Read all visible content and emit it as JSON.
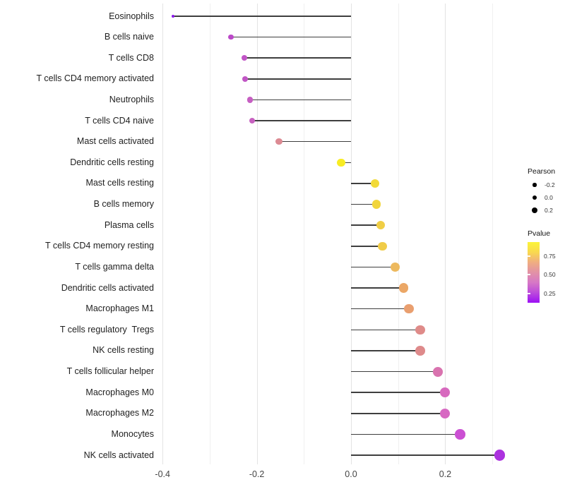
{
  "chart_data": {
    "type": "lollipop",
    "orientation": "horizontal",
    "title": "",
    "xlabel": "",
    "ylabel": "",
    "grid": "vertical-only",
    "background": "#ffffff",
    "stem_color": "#3e3e3e",
    "xlim": [
      -0.41,
      0.345
    ],
    "x_ticks": {
      "labels": [
        "-0.4",
        "-0.2",
        "0.0",
        "0.2"
      ],
      "values": [
        -0.4,
        -0.2,
        0.0,
        0.2
      ]
    },
    "x_minor_gridlines": [
      -0.3,
      -0.1,
      0.1,
      0.3
    ],
    "baseline_value": 0.0,
    "size_encoding": {
      "variable": "Pearson",
      "domain": [
        -0.378,
        0.316
      ]
    },
    "color_encoding": {
      "variable": "Pvalue",
      "scale": "plasma-reversed"
    },
    "rows": [
      {
        "label": "Eosinophils",
        "pearson": -0.378,
        "color": "#8b16ea"
      },
      {
        "label": "B cells naive",
        "pearson": -0.255,
        "color": "#bb48c8"
      },
      {
        "label": "T cells CD8",
        "pearson": -0.226,
        "color": "#c155c6"
      },
      {
        "label": "T cells CD4 memory activated",
        "pearson": -0.225,
        "color": "#c156c5"
      },
      {
        "label": "Neutrophils",
        "pearson": -0.214,
        "color": "#c65ec2"
      },
      {
        "label": "T cells CD4 naive",
        "pearson": -0.21,
        "color": "#c761c0"
      },
      {
        "label": "Mast cells activated",
        "pearson": -0.153,
        "color": "#dc8a93"
      },
      {
        "label": "Dendritic cells resting",
        "pearson": -0.021,
        "color": "#f8ec23"
      },
      {
        "label": "Mast cells resting",
        "pearson": 0.051,
        "color": "#f2da38"
      },
      {
        "label": "B cells memory",
        "pearson": 0.054,
        "color": "#f1d53c"
      },
      {
        "label": "Plasma cells",
        "pearson": 0.063,
        "color": "#f0ce45"
      },
      {
        "label": "T cells CD4 memory resting",
        "pearson": 0.067,
        "color": "#f0cc48"
      },
      {
        "label": "T cells gamma delta",
        "pearson": 0.094,
        "color": "#edb95e"
      },
      {
        "label": "Dendritic cells activated",
        "pearson": 0.112,
        "color": "#eba766"
      },
      {
        "label": "Macrophages M1",
        "pearson": 0.123,
        "color": "#e99f6f"
      },
      {
        "label": "T cells regulatory  Tregs",
        "pearson": 0.147,
        "color": "#df8b89"
      },
      {
        "label": "NK cells resting",
        "pearson": 0.147,
        "color": "#de8a8b"
      },
      {
        "label": "T cells follicular helper",
        "pearson": 0.184,
        "color": "#d973af"
      },
      {
        "label": "Macrophages M0",
        "pearson": 0.199,
        "color": "#d769be"
      },
      {
        "label": "Macrophages M2",
        "pearson": 0.199,
        "color": "#d768c2"
      },
      {
        "label": "Monocytes",
        "pearson": 0.232,
        "color": "#cb50d3"
      },
      {
        "label": "NK cells activated",
        "pearson": 0.316,
        "color": "#ac32df"
      }
    ],
    "legend": {
      "position": "right",
      "size_legend": {
        "title": "Pearson",
        "dot_color": "#000000",
        "entries": [
          {
            "label": "-0.2",
            "value": -0.2
          },
          {
            "label": "0.0",
            "value": 0.0
          },
          {
            "label": "0.2",
            "value": 0.2
          }
        ]
      },
      "color_legend": {
        "title": "Pvalue",
        "tick_labels": [
          "0.75",
          "0.50",
          "0.25"
        ],
        "gradient_top_to_bottom": [
          "#fbf439",
          "#f9d94f",
          "#f0ad81",
          "#e292a6",
          "#d678c6",
          "#bc4bdb",
          "#9c10f5"
        ]
      }
    }
  }
}
